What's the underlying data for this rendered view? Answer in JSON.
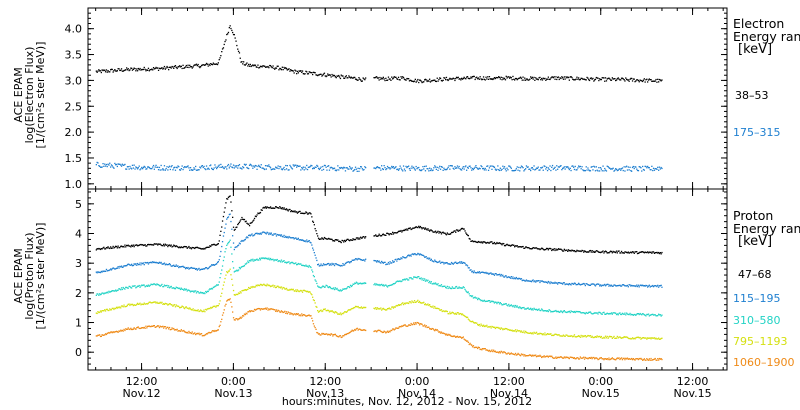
{
  "figure": {
    "xlabel": "hours:minutes, Nov. 12, 2012 - Nov. 15, 2012",
    "x_ticks": [
      {
        "time": "12:00",
        "date": "Nov.12",
        "hours": 12
      },
      {
        "time": "0:00",
        "date": "Nov.13",
        "hours": 24
      },
      {
        "time": "12:00",
        "date": "Nov.13",
        "hours": 36
      },
      {
        "time": "0:00",
        "date": "Nov.14",
        "hours": 48
      },
      {
        "time": "12:00",
        "date": "Nov.14",
        "hours": 60
      },
      {
        "time": "0:00",
        "date": "Nov.15",
        "hours": 72
      },
      {
        "time": "12:00",
        "date": "Nov.15",
        "hours": 84
      }
    ],
    "xlim_hours": [
      5.0,
      88.5
    ]
  },
  "electron_legend": {
    "title_line1": "Electron",
    "title_line2": "Energy ran",
    "unit": "[keV]",
    "labels": [
      {
        "text": "38–53",
        "color": "#000000"
      },
      {
        "text": "175–315",
        "color": "#1e7fd0"
      }
    ]
  },
  "proton_legend": {
    "title_line1": "Proton",
    "title_line2": "Energy ran",
    "unit": "[keV]",
    "labels": [
      {
        "text": "47–68",
        "color": "#000000"
      },
      {
        "text": "115–195",
        "color": "#1e7fd0"
      },
      {
        "text": "310–580",
        "color": "#22d3c5"
      },
      {
        "text": "795–1193",
        "color": "#d4e010"
      },
      {
        "text": "1060–1900",
        "color": "#ef8a17"
      }
    ]
  },
  "chart_data": [
    {
      "type": "scatter",
      "panel": "electron",
      "ylabel_line1": "ACE EPAM",
      "ylabel_line2": "log(Electron Flux)",
      "ylabel_line3": "[1/(cm²s ster MeV)]",
      "x_unit": "hours since Nov. 12, 2012 00:00",
      "ylim": [
        0.9,
        4.4
      ],
      "yticks": [
        1.0,
        1.5,
        2.0,
        2.5,
        3.0,
        3.5,
        4.0
      ],
      "grid": false,
      "data_gaps_hours": [
        [
          41.2,
          42.2
        ]
      ],
      "series": [
        {
          "name": "38–53",
          "color": "#000000",
          "x": [
            6,
            10,
            14,
            18,
            20,
            22,
            23,
            23.5,
            24,
            25,
            26,
            28,
            30,
            32,
            34,
            36,
            38,
            40,
            41,
            42.5,
            44,
            46,
            48,
            50,
            52,
            54,
            56,
            58,
            60,
            62,
            64,
            66,
            68,
            70,
            72,
            74,
            76,
            78,
            80
          ],
          "y": [
            3.18,
            3.22,
            3.24,
            3.28,
            3.3,
            3.35,
            3.85,
            4.08,
            3.9,
            3.35,
            3.3,
            3.28,
            3.25,
            3.18,
            3.15,
            3.12,
            3.08,
            3.05,
            3.02,
            3.05,
            3.04,
            3.06,
            3.0,
            3.02,
            3.04,
            3.05,
            3.06,
            3.05,
            3.06,
            3.05,
            3.04,
            3.06,
            3.05,
            3.04,
            3.03,
            3.03,
            3.02,
            3.01,
            3.0
          ]
        },
        {
          "name": "175–315",
          "color": "#1e7fd0",
          "x": [
            6,
            12,
            18,
            24,
            30,
            36,
            40,
            43,
            48,
            54,
            60,
            66,
            72,
            78,
            80
          ],
          "y": [
            1.38,
            1.33,
            1.32,
            1.35,
            1.33,
            1.32,
            1.3,
            1.32,
            1.31,
            1.32,
            1.31,
            1.32,
            1.31,
            1.3,
            1.32
          ]
        }
      ]
    },
    {
      "type": "scatter",
      "panel": "proton",
      "ylabel_line1": "ACE EPAM",
      "ylabel_line2": "log(Proton Flux)",
      "ylabel_line3": "[1/(cm²s ster MeV)]",
      "x_unit": "hours since Nov. 12, 2012 00:00",
      "ylim": [
        -0.6,
        5.5
      ],
      "yticks": [
        0,
        1,
        2,
        3,
        4,
        5
      ],
      "grid": false,
      "data_gaps_hours": [
        [
          41.2,
          42.2
        ]
      ],
      "series": [
        {
          "name": "47–68",
          "color": "#000000",
          "x": [
            6,
            10,
            14,
            18,
            20,
            22,
            23,
            23.5,
            24,
            25,
            26,
            27,
            28,
            30,
            32,
            34,
            35,
            36,
            38,
            40,
            42.5,
            44,
            46,
            48,
            50,
            52,
            54,
            55,
            56,
            58,
            60,
            62,
            64,
            66,
            68,
            70,
            72,
            74,
            76,
            78,
            80
          ],
          "y": [
            3.5,
            3.6,
            3.65,
            3.55,
            3.5,
            3.7,
            5.15,
            5.3,
            4.1,
            4.55,
            4.3,
            4.65,
            4.9,
            4.9,
            4.75,
            4.7,
            3.85,
            3.85,
            3.75,
            3.85,
            3.95,
            4.0,
            4.1,
            4.25,
            4.1,
            4.0,
            4.2,
            3.75,
            3.75,
            3.7,
            3.62,
            3.55,
            3.5,
            3.48,
            3.45,
            3.42,
            3.4,
            3.4,
            3.38,
            3.38,
            3.37
          ]
        },
        {
          "name": "115–195",
          "color": "#1e7fd0",
          "x": [
            6,
            10,
            14,
            18,
            20,
            22,
            23,
            23.5,
            24,
            25,
            26,
            28,
            30,
            32,
            34,
            35,
            36,
            38,
            40,
            42.5,
            44,
            46,
            48,
            50,
            52,
            54,
            55,
            56,
            58,
            60,
            62,
            64,
            66,
            68,
            70,
            72,
            74,
            76,
            78,
            80
          ],
          "y": [
            2.7,
            2.95,
            3.05,
            2.85,
            2.8,
            3.05,
            4.45,
            4.7,
            3.5,
            3.75,
            3.95,
            4.05,
            3.95,
            3.85,
            3.75,
            2.95,
            3.0,
            2.95,
            3.15,
            3.1,
            3.0,
            3.2,
            3.35,
            3.1,
            3.0,
            3.05,
            2.75,
            2.7,
            2.65,
            2.55,
            2.45,
            2.4,
            2.35,
            2.32,
            2.3,
            2.28,
            2.27,
            2.26,
            2.25,
            2.24
          ]
        },
        {
          "name": "310–580",
          "color": "#22d3c5",
          "x": [
            6,
            10,
            14,
            18,
            20,
            22,
            23,
            23.5,
            24,
            25,
            26,
            28,
            30,
            32,
            34,
            35,
            36,
            38,
            40,
            42.5,
            44,
            46,
            48,
            50,
            52,
            54,
            55,
            56,
            58,
            60,
            62,
            64,
            66,
            68,
            70,
            72,
            74,
            76,
            78,
            80
          ],
          "y": [
            1.95,
            2.2,
            2.3,
            2.1,
            2.0,
            2.3,
            3.6,
            3.8,
            2.7,
            2.9,
            3.1,
            3.2,
            3.1,
            3.0,
            2.9,
            2.2,
            2.25,
            2.1,
            2.35,
            2.3,
            2.25,
            2.45,
            2.55,
            2.35,
            2.2,
            2.2,
            1.9,
            1.8,
            1.7,
            1.6,
            1.5,
            1.45,
            1.4,
            1.38,
            1.35,
            1.33,
            1.32,
            1.3,
            1.28,
            1.27
          ]
        },
        {
          "name": "795–1193",
          "color": "#d4e010",
          "x": [
            6,
            10,
            14,
            18,
            20,
            22,
            23,
            23.5,
            24,
            25,
            26,
            28,
            30,
            32,
            34,
            35,
            36,
            38,
            40,
            42.5,
            44,
            46,
            48,
            50,
            52,
            54,
            55,
            56,
            58,
            60,
            62,
            64,
            66,
            68,
            70,
            72,
            74,
            76,
            78,
            80
          ],
          "y": [
            1.35,
            1.6,
            1.7,
            1.5,
            1.4,
            1.6,
            2.7,
            2.8,
            1.95,
            2.05,
            2.2,
            2.3,
            2.2,
            2.1,
            2.05,
            1.4,
            1.45,
            1.3,
            1.55,
            1.5,
            1.45,
            1.65,
            1.75,
            1.55,
            1.35,
            1.3,
            1.05,
            0.95,
            0.85,
            0.78,
            0.7,
            0.65,
            0.6,
            0.58,
            0.55,
            0.53,
            0.52,
            0.5,
            0.49,
            0.48
          ]
        },
        {
          "name": "1060–1900",
          "color": "#ef8a17",
          "x": [
            6,
            10,
            14,
            18,
            20,
            22,
            23,
            23.5,
            24,
            25,
            26,
            28,
            30,
            32,
            34,
            35,
            36,
            38,
            40,
            42.5,
            44,
            46,
            48,
            50,
            52,
            54,
            55,
            56,
            58,
            60,
            62,
            64,
            66,
            68,
            70,
            72,
            74,
            76,
            78,
            80
          ],
          "y": [
            0.55,
            0.8,
            0.9,
            0.7,
            0.6,
            0.8,
            1.7,
            1.85,
            1.1,
            1.2,
            1.4,
            1.5,
            1.4,
            1.3,
            1.25,
            0.6,
            0.65,
            0.55,
            0.8,
            0.75,
            0.7,
            0.9,
            1.0,
            0.8,
            0.6,
            0.5,
            0.25,
            0.15,
            0.05,
            -0.02,
            -0.08,
            -0.12,
            -0.15,
            -0.17,
            -0.18,
            -0.2,
            -0.2,
            -0.21,
            -0.22,
            -0.22
          ]
        }
      ]
    }
  ]
}
